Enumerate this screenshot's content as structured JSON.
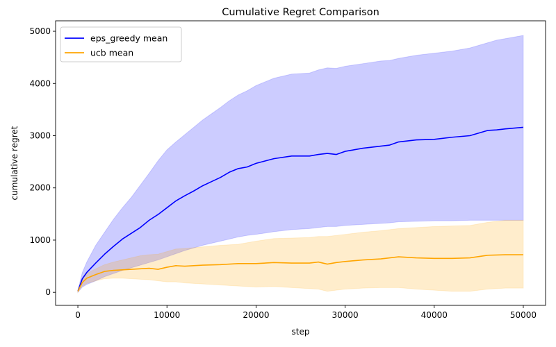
{
  "chart_data": {
    "type": "line",
    "title": "Cumulative Regret Comparison",
    "xlabel": "step",
    "ylabel": "cumulative regret",
    "xlim": [
      -2500,
      52500
    ],
    "ylim": [
      -250,
      5200
    ],
    "xticks": [
      0,
      10000,
      20000,
      30000,
      40000,
      50000
    ],
    "xtick_labels": [
      "0",
      "10000",
      "20000",
      "30000",
      "40000",
      "50000"
    ],
    "yticks": [
      0,
      1000,
      2000,
      3000,
      4000,
      5000
    ],
    "ytick_labels": [
      "0",
      "1000",
      "2000",
      "3000",
      "4000",
      "5000"
    ],
    "grid": false,
    "legend_position": "top-left",
    "series": [
      {
        "name": "eps_greedy mean",
        "color": "#0000ff",
        "band_color": "#0000ff",
        "x": [
          0,
          500,
          1000,
          2000,
          3000,
          4000,
          5000,
          6000,
          7000,
          8000,
          9000,
          10000,
          11000,
          12000,
          13000,
          14000,
          15000,
          16000,
          17000,
          18000,
          19000,
          20000,
          22000,
          24000,
          26000,
          27000,
          28000,
          29000,
          30000,
          32000,
          34000,
          35000,
          36000,
          38000,
          40000,
          42000,
          44000,
          46000,
          47000,
          48000,
          50000
        ],
        "y": [
          20,
          260,
          380,
          560,
          730,
          880,
          1020,
          1130,
          1240,
          1380,
          1490,
          1620,
          1750,
          1850,
          1940,
          2040,
          2120,
          2200,
          2300,
          2370,
          2400,
          2470,
          2560,
          2610,
          2610,
          2640,
          2660,
          2640,
          2700,
          2760,
          2800,
          2820,
          2880,
          2920,
          2930,
          2970,
          3000,
          3100,
          3110,
          3130,
          3160
        ],
        "upper": [
          40,
          380,
          580,
          900,
          1150,
          1400,
          1620,
          1820,
          2050,
          2280,
          2520,
          2730,
          2880,
          3020,
          3160,
          3300,
          3420,
          3540,
          3670,
          3780,
          3860,
          3960,
          4100,
          4180,
          4200,
          4260,
          4300,
          4290,
          4330,
          4380,
          4430,
          4440,
          4480,
          4540,
          4580,
          4620,
          4680,
          4780,
          4830,
          4860,
          4920
        ],
        "lower": [
          0,
          100,
          150,
          220,
          300,
          360,
          420,
          470,
          520,
          570,
          620,
          680,
          740,
          800,
          850,
          900,
          940,
          980,
          1020,
          1060,
          1090,
          1110,
          1160,
          1200,
          1220,
          1240,
          1260,
          1260,
          1280,
          1300,
          1320,
          1330,
          1350,
          1360,
          1370,
          1370,
          1380,
          1380,
          1380,
          1380,
          1380
        ]
      },
      {
        "name": "ucb mean",
        "color": "#ffa500",
        "band_color": "#ffa500",
        "x": [
          0,
          500,
          1000,
          2000,
          3000,
          4000,
          5000,
          6000,
          7000,
          8000,
          9000,
          10000,
          11000,
          12000,
          14000,
          16000,
          18000,
          20000,
          22000,
          24000,
          26000,
          27000,
          28000,
          29000,
          30000,
          32000,
          34000,
          36000,
          38000,
          40000,
          42000,
          44000,
          46000,
          48000,
          50000
        ],
        "y": [
          20,
          190,
          270,
          340,
          400,
          420,
          430,
          440,
          450,
          460,
          440,
          480,
          510,
          500,
          520,
          530,
          550,
          550,
          570,
          560,
          560,
          580,
          540,
          570,
          590,
          620,
          640,
          680,
          660,
          650,
          650,
          660,
          710,
          720,
          720
        ],
        "upper": [
          40,
          260,
          360,
          450,
          530,
          580,
          620,
          660,
          700,
          720,
          730,
          780,
          830,
          840,
          870,
          900,
          920,
          980,
          1030,
          1040,
          1050,
          1070,
          1070,
          1090,
          1110,
          1150,
          1180,
          1220,
          1240,
          1260,
          1270,
          1280,
          1340,
          1380,
          1380
        ],
        "lower": [
          0,
          120,
          170,
          220,
          260,
          270,
          270,
          260,
          250,
          240,
          220,
          200,
          200,
          180,
          160,
          140,
          120,
          100,
          110,
          90,
          70,
          60,
          20,
          40,
          60,
          80,
          90,
          90,
          60,
          40,
          20,
          20,
          60,
          80,
          80
        ]
      }
    ]
  }
}
